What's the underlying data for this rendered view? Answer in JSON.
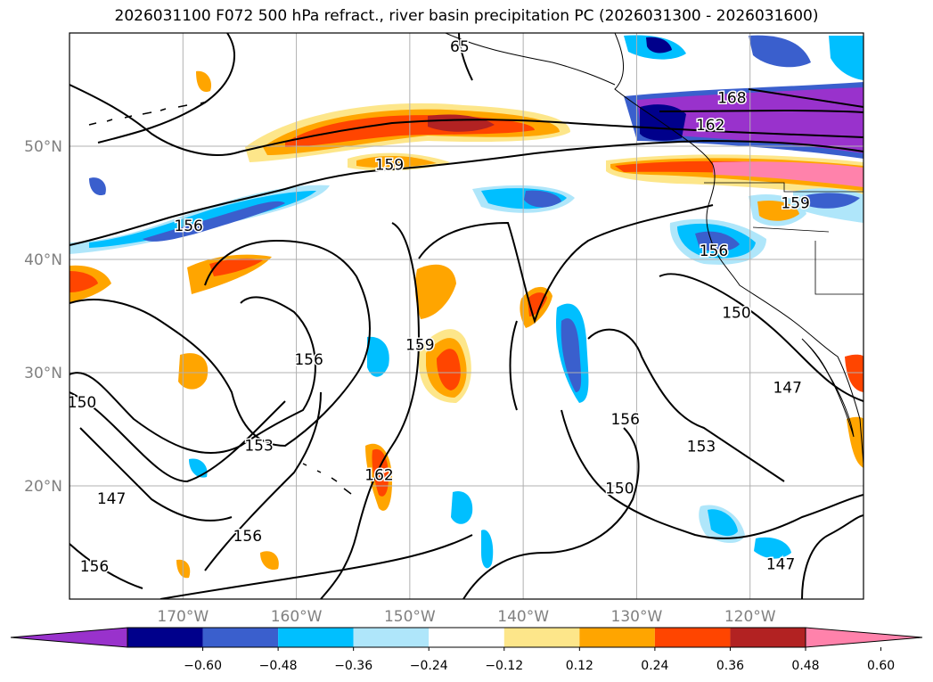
{
  "title": "2026031100 F072 500 hPa refract., river basin precipitation PC (2026031300 - 2026031600)",
  "map": {
    "lat_labels": [
      {
        "lat": 50,
        "label": "50°N"
      },
      {
        "lat": 40,
        "label": "40°N"
      },
      {
        "lat": 30,
        "label": "30°N"
      },
      {
        "lat": 20,
        "label": "20°N"
      }
    ],
    "lon_labels": [
      {
        "lon": -170,
        "label": "170°W"
      },
      {
        "lon": -160,
        "label": "160°W"
      },
      {
        "lon": -150,
        "label": "150°W"
      },
      {
        "lon": -140,
        "label": "140°W"
      },
      {
        "lon": -130,
        "label": "130°W"
      },
      {
        "lon": -120,
        "label": "120°W"
      }
    ],
    "extent": {
      "lon_min": -180,
      "lon_max": -110,
      "lat_min": 10,
      "lat_max": 60
    },
    "contour_labels": [
      {
        "text": "65",
        "lon": -145.6,
        "lat": 58.8
      },
      {
        "text": "168",
        "lon": -121.6,
        "lat": 54.3
      },
      {
        "text": "162",
        "lon": -123.5,
        "lat": 51.9
      },
      {
        "text": "159",
        "lon": -151.8,
        "lat": 48.4
      },
      {
        "text": "159",
        "lon": -116.0,
        "lat": 45.0
      },
      {
        "text": "156",
        "lon": -169.5,
        "lat": 43.0
      },
      {
        "text": "156",
        "lon": -123.2,
        "lat": 40.8
      },
      {
        "text": "150",
        "lon": -121.2,
        "lat": 35.3
      },
      {
        "text": "156",
        "lon": -158.9,
        "lat": 31.2
      },
      {
        "text": "159",
        "lon": -149.1,
        "lat": 32.5
      },
      {
        "text": "150",
        "lon": -178.9,
        "lat": 27.4
      },
      {
        "text": "147",
        "lon": -116.7,
        "lat": 28.7
      },
      {
        "text": "156",
        "lon": -131.0,
        "lat": 25.9
      },
      {
        "text": "153",
        "lon": -163.3,
        "lat": 23.6
      },
      {
        "text": "153",
        "lon": -124.3,
        "lat": 23.5
      },
      {
        "text": "162",
        "lon": -152.7,
        "lat": 21.0
      },
      {
        "text": "147",
        "lon": -176.3,
        "lat": 18.9
      },
      {
        "text": "150",
        "lon": -131.5,
        "lat": 19.8
      },
      {
        "text": "156",
        "lon": -164.3,
        "lat": 15.6
      },
      {
        "text": "147",
        "lon": -117.3,
        "lat": 13.1
      },
      {
        "text": "156",
        "lon": -177.8,
        "lat": 12.9
      }
    ]
  },
  "colorbar": {
    "colors": [
      "#9932cc",
      "#00008b",
      "#3a5fcd",
      "#00bfff",
      "#afe6fa",
      "#ffffff",
      "#fde68a",
      "#ffa500",
      "#ff4500",
      "#b22222",
      "#ff82ab"
    ],
    "tick_labels": [
      "−0.60",
      "−0.48",
      "−0.36",
      "−0.24",
      "−0.12",
      "0.12",
      "0.24",
      "0.36",
      "0.48",
      "0.60"
    ]
  }
}
